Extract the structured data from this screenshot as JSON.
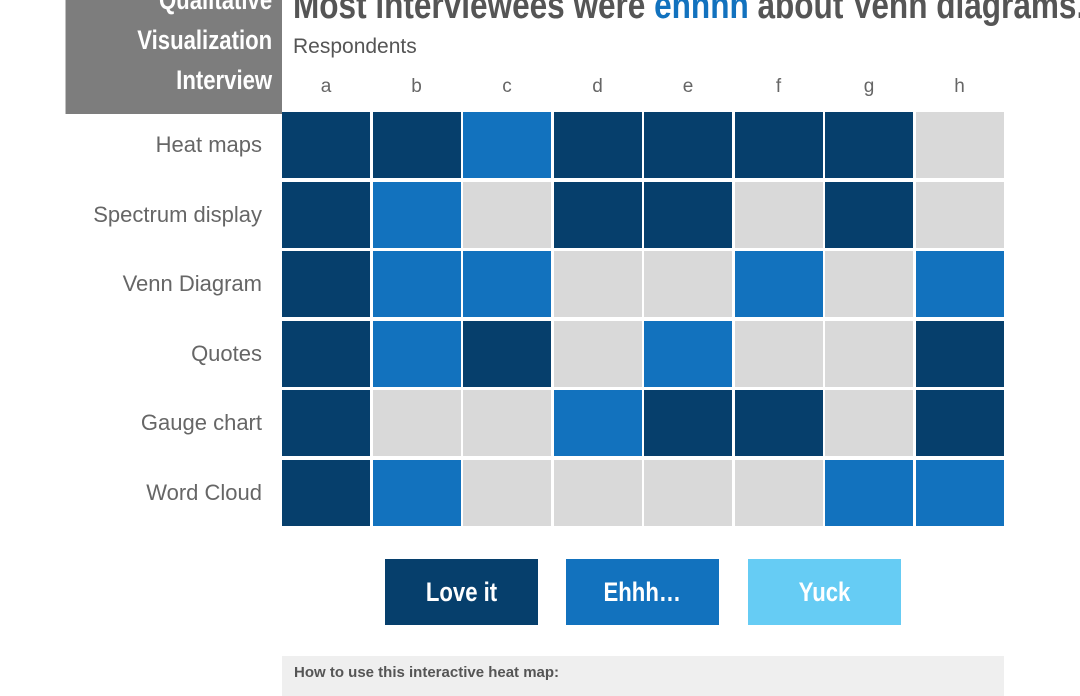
{
  "title_box": {
    "lines": [
      "Qualitative",
      "Visualization",
      "Interview"
    ]
  },
  "headline": {
    "before": "Most interviewees were ",
    "highlight": "ehhhh",
    "after": " about Venn diagrams."
  },
  "colors": {
    "love": "#063f6c",
    "ehhh": "#1272be",
    "yuck_legend": "#66ccf4",
    "yuck_cell": "#d9d9d9"
  },
  "legend": [
    {
      "key": "love",
      "label": "Love it"
    },
    {
      "key": "ehhh",
      "label": "Ehhh…"
    },
    {
      "key": "yuck",
      "label": "Yuck"
    }
  ],
  "howto": {
    "text": "How to use this interactive heat map:"
  },
  "chart_data": {
    "type": "heatmap",
    "xlabel": "Respondents",
    "columns": [
      "a",
      "b",
      "c",
      "d",
      "e",
      "f",
      "g",
      "h"
    ],
    "rows": [
      "Heat maps",
      "Spectrum display",
      "Venn Diagram",
      "Quotes",
      "Gauge chart",
      "Word Cloud"
    ],
    "values": [
      [
        "love",
        "love",
        "ehhh",
        "love",
        "love",
        "love",
        "love",
        "yuck"
      ],
      [
        "love",
        "ehhh",
        "yuck",
        "love",
        "love",
        "yuck",
        "love",
        "yuck"
      ],
      [
        "love",
        "ehhh",
        "ehhh",
        "yuck",
        "yuck",
        "ehhh",
        "yuck",
        "ehhh"
      ],
      [
        "love",
        "ehhh",
        "love",
        "yuck",
        "ehhh",
        "yuck",
        "yuck",
        "love"
      ],
      [
        "love",
        "yuck",
        "yuck",
        "ehhh",
        "love",
        "love",
        "yuck",
        "love"
      ],
      [
        "love",
        "ehhh",
        "yuck",
        "yuck",
        "yuck",
        "yuck",
        "ehhh",
        "ehhh"
      ]
    ]
  }
}
